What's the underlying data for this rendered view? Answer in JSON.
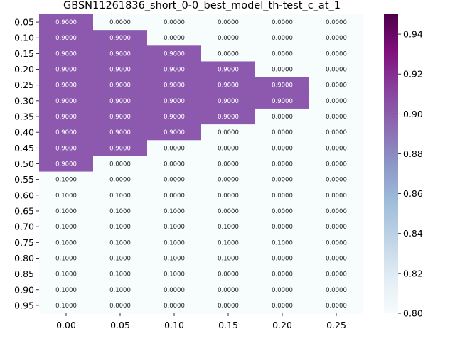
{
  "chart_data": {
    "type": "heatmap",
    "title": "GBSN11261836_short_0-0_best_model_th-test_c_at_1",
    "xlabel": "",
    "ylabel": "",
    "x_categories": [
      "0.00",
      "0.05",
      "0.10",
      "0.15",
      "0.20",
      "0.25"
    ],
    "y_categories": [
      "0.05",
      "0.10",
      "0.15",
      "0.20",
      "0.25",
      "0.30",
      "0.35",
      "0.40",
      "0.45",
      "0.50",
      "0.55",
      "0.60",
      "0.65",
      "0.70",
      "0.75",
      "0.80",
      "0.85",
      "0.90",
      "0.95"
    ],
    "values": [
      [
        0.9,
        0.0,
        0.0,
        0.0,
        0.0,
        0.0
      ],
      [
        0.9,
        0.9,
        0.0,
        0.0,
        0.0,
        0.0
      ],
      [
        0.9,
        0.9,
        0.9,
        0.0,
        0.0,
        0.0
      ],
      [
        0.9,
        0.9,
        0.9,
        0.9,
        0.0,
        0.0
      ],
      [
        0.9,
        0.9,
        0.9,
        0.9,
        0.9,
        0.0
      ],
      [
        0.9,
        0.9,
        0.9,
        0.9,
        0.9,
        0.0
      ],
      [
        0.9,
        0.9,
        0.9,
        0.9,
        0.0,
        0.0
      ],
      [
        0.9,
        0.9,
        0.9,
        0.0,
        0.0,
        0.0
      ],
      [
        0.9,
        0.9,
        0.0,
        0.0,
        0.0,
        0.0
      ],
      [
        0.9,
        0.0,
        0.0,
        0.0,
        0.0,
        0.0
      ],
      [
        0.1,
        0.0,
        0.0,
        0.0,
        0.0,
        0.0
      ],
      [
        0.1,
        0.1,
        0.0,
        0.0,
        0.0,
        0.0
      ],
      [
        0.1,
        0.1,
        0.1,
        0.0,
        0.0,
        0.0
      ],
      [
        0.1,
        0.1,
        0.1,
        0.1,
        0.0,
        0.0
      ],
      [
        0.1,
        0.1,
        0.1,
        0.1,
        0.1,
        0.0
      ],
      [
        0.1,
        0.1,
        0.1,
        0.1,
        0.0,
        0.0
      ],
      [
        0.1,
        0.1,
        0.1,
        0.0,
        0.0,
        0.0
      ],
      [
        0.1,
        0.1,
        0.0,
        0.0,
        0.0,
        0.0
      ],
      [
        0.1,
        0.0,
        0.0,
        0.0,
        0.0,
        0.0
      ]
    ],
    "value_format_decimals": 4,
    "colorbar": {
      "colormap": "BuPu",
      "range": [
        0.8,
        0.95
      ],
      "ticks": [
        "0.80",
        "0.82",
        "0.84",
        "0.86",
        "0.88",
        "0.90",
        "0.92",
        "0.94"
      ],
      "tick_values": [
        0.8,
        0.82,
        0.84,
        0.86,
        0.88,
        0.9,
        0.92,
        0.94
      ],
      "gradient_colors": [
        "#f7fcfd",
        "#e0ecf4",
        "#bfd3e6",
        "#9ebcda",
        "#8c96c6",
        "#8c6bb1",
        "#88419d",
        "#810f7c",
        "#4d004b"
      ]
    },
    "colors": {
      "high_cell": "#8c59af",
      "low_cell": "#f7fcfd",
      "text_on_high": "#ffffff",
      "text_on_low": "#262626"
    }
  }
}
